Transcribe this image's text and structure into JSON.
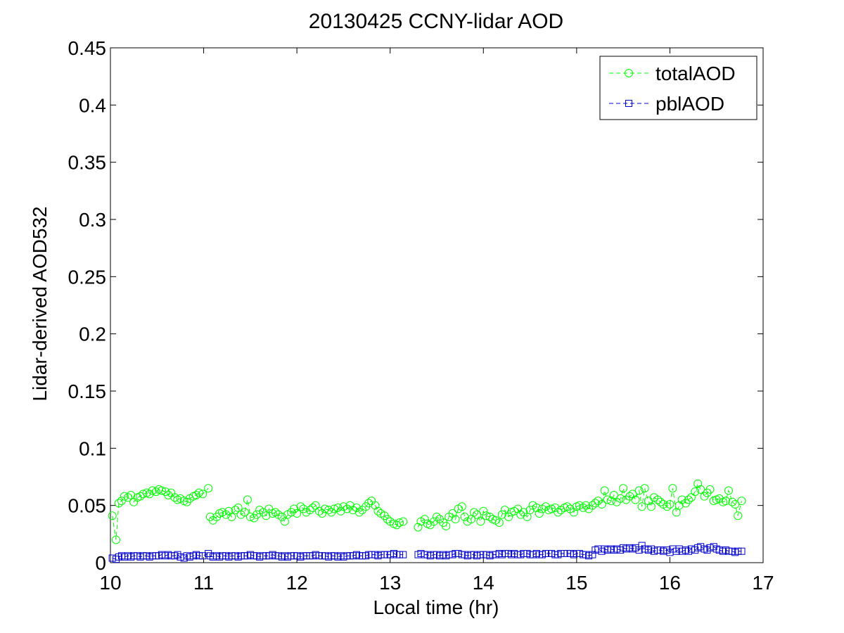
{
  "chart_data": {
    "type": "line",
    "title": "20130425 CCNY-lidar AOD",
    "xlabel": "Local time (hr)",
    "ylabel": "Lidar-derived AOD532",
    "xlim": [
      10,
      17
    ],
    "ylim": [
      0,
      0.45
    ],
    "xticks": [
      10,
      11,
      12,
      13,
      14,
      15,
      16,
      17
    ],
    "yticks": [
      0,
      0.05,
      0.1,
      0.15,
      0.2,
      0.25,
      0.3,
      0.35,
      0.4,
      0.45
    ],
    "xtick_labels": [
      "10",
      "11",
      "12",
      "13",
      "14",
      "15",
      "16",
      "17"
    ],
    "ytick_labels": [
      "0",
      "0.05",
      "0.1",
      "0.15",
      "0.2",
      "0.25",
      "0.3",
      "0.35",
      "0.4",
      "0.45"
    ],
    "grid": false,
    "legend_position": "top-right",
    "series": [
      {
        "name": "totalAOD",
        "color": "#00ff00",
        "marker": "circle",
        "line_style": "dashed",
        "segments": [
          {
            "x": [
              10.02,
              10.06,
              10.09,
              10.12,
              10.15,
              10.19,
              10.22,
              10.25,
              10.29,
              10.32,
              10.35,
              10.39,
              10.42,
              10.45,
              10.49,
              10.52,
              10.55,
              10.59,
              10.62,
              10.65,
              10.69,
              10.72,
              10.75,
              10.79,
              10.82,
              10.85,
              10.89,
              10.92,
              10.95,
              10.99,
              11.05
            ],
            "y": [
              0.041,
              0.02,
              0.052,
              0.054,
              0.058,
              0.057,
              0.059,
              0.053,
              0.057,
              0.058,
              0.06,
              0.061,
              0.06,
              0.063,
              0.062,
              0.064,
              0.063,
              0.062,
              0.059,
              0.061,
              0.057,
              0.055,
              0.056,
              0.054,
              0.053,
              0.056,
              0.058,
              0.059,
              0.061,
              0.06,
              0.065
            ]
          },
          {
            "x": [
              11.07,
              11.1,
              11.14,
              11.17,
              11.2,
              11.24,
              11.27,
              11.3,
              11.34,
              11.37,
              11.4,
              11.44,
              11.47,
              11.5,
              11.54,
              11.57,
              11.6,
              11.64,
              11.67,
              11.7,
              11.74,
              11.77,
              11.8,
              11.84,
              11.87,
              11.9,
              11.94,
              11.97,
              12.0,
              12.04,
              12.07,
              12.1,
              12.14,
              12.17,
              12.2,
              12.24,
              12.27,
              12.3,
              12.34,
              12.37,
              12.4,
              12.44,
              12.47,
              12.5,
              12.54,
              12.57,
              12.6,
              12.64,
              12.67,
              12.7,
              12.74,
              12.77,
              12.8,
              12.84,
              12.87,
              12.9,
              12.94,
              12.97,
              13.0,
              13.04,
              13.07,
              13.1,
              13.14
            ],
            "y": [
              0.04,
              0.037,
              0.04,
              0.043,
              0.044,
              0.042,
              0.045,
              0.04,
              0.046,
              0.048,
              0.042,
              0.044,
              0.055,
              0.04,
              0.039,
              0.042,
              0.046,
              0.044,
              0.041,
              0.047,
              0.043,
              0.044,
              0.042,
              0.04,
              0.036,
              0.042,
              0.044,
              0.047,
              0.043,
              0.049,
              0.047,
              0.044,
              0.046,
              0.048,
              0.05,
              0.045,
              0.043,
              0.047,
              0.046,
              0.044,
              0.047,
              0.048,
              0.045,
              0.049,
              0.047,
              0.05,
              0.046,
              0.048,
              0.044,
              0.046,
              0.049,
              0.052,
              0.054,
              0.05,
              0.045,
              0.043,
              0.041,
              0.038,
              0.036,
              0.034,
              0.033,
              0.035,
              0.036
            ]
          },
          {
            "x": [
              13.3,
              13.33,
              13.37,
              13.4,
              13.43,
              13.47,
              13.5,
              13.53,
              13.57,
              13.6,
              13.63,
              13.67,
              13.7,
              13.73,
              13.77,
              13.8,
              13.83,
              13.87,
              13.9,
              13.93,
              13.97,
              14.0,
              14.03,
              14.07,
              14.1,
              14.13,
              14.17,
              14.2,
              14.23,
              14.27,
              14.3,
              14.33,
              14.37,
              14.4,
              14.43,
              14.47,
              14.5,
              14.53,
              14.57,
              14.6,
              14.63,
              14.67,
              14.7,
              14.73,
              14.77,
              14.8,
              14.83,
              14.87,
              14.9,
              14.93,
              14.97,
              15.0,
              15.03,
              15.07,
              15.1,
              15.13,
              15.17,
              15.2,
              15.23,
              15.27,
              15.3,
              15.33,
              15.37,
              15.4,
              15.43,
              15.47,
              15.5,
              15.53,
              15.57,
              15.6,
              15.63,
              15.67,
              15.7,
              15.73,
              15.77,
              15.8,
              15.83,
              15.87,
              15.9,
              15.93,
              15.97,
              16.0,
              16.03,
              16.07,
              16.1,
              16.13,
              16.17,
              16.2,
              16.23,
              16.27,
              16.3,
              16.33,
              16.37,
              16.4,
              16.43,
              16.47,
              16.5,
              16.53,
              16.57,
              16.6,
              16.63,
              16.67,
              16.7,
              16.73,
              16.77
            ],
            "y": [
              0.031,
              0.036,
              0.038,
              0.034,
              0.033,
              0.036,
              0.04,
              0.038,
              0.035,
              0.032,
              0.04,
              0.043,
              0.038,
              0.047,
              0.049,
              0.04,
              0.036,
              0.038,
              0.044,
              0.042,
              0.036,
              0.045,
              0.041,
              0.04,
              0.038,
              0.037,
              0.035,
              0.042,
              0.046,
              0.04,
              0.044,
              0.045,
              0.047,
              0.042,
              0.044,
              0.04,
              0.046,
              0.05,
              0.048,
              0.043,
              0.047,
              0.049,
              0.046,
              0.047,
              0.048,
              0.044,
              0.046,
              0.048,
              0.049,
              0.047,
              0.044,
              0.049,
              0.05,
              0.048,
              0.05,
              0.047,
              0.05,
              0.052,
              0.054,
              0.051,
              0.063,
              0.055,
              0.054,
              0.059,
              0.053,
              0.056,
              0.065,
              0.055,
              0.058,
              0.06,
              0.055,
              0.063,
              0.049,
              0.065,
              0.054,
              0.049,
              0.057,
              0.055,
              0.053,
              0.051,
              0.049,
              0.051,
              0.065,
              0.044,
              0.05,
              0.055,
              0.052,
              0.055,
              0.057,
              0.062,
              0.069,
              0.064,
              0.058,
              0.061,
              0.064,
              0.054,
              0.055,
              0.056,
              0.053,
              0.054,
              0.063,
              0.053,
              0.051,
              0.041,
              0.054
            ]
          }
        ]
      },
      {
        "name": "pblAOD",
        "color": "#0000cc",
        "marker": "square",
        "line_style": "dashed",
        "segments": [
          {
            "x": [
              10.02,
              10.06,
              10.09,
              10.12,
              10.15,
              10.19,
              10.22,
              10.25,
              10.29,
              10.32,
              10.35,
              10.39,
              10.42,
              10.45,
              10.49,
              10.52,
              10.55,
              10.59,
              10.62,
              10.65,
              10.69,
              10.72,
              10.75,
              10.79,
              10.82,
              10.85,
              10.89,
              10.92,
              10.95,
              10.99,
              11.05
            ],
            "y": [
              0.004,
              0.003,
              0.005,
              0.006,
              0.005,
              0.006,
              0.005,
              0.006,
              0.006,
              0.005,
              0.006,
              0.006,
              0.005,
              0.006,
              0.006,
              0.006,
              0.007,
              0.006,
              0.007,
              0.006,
              0.006,
              0.007,
              0.005,
              0.004,
              0.006,
              0.005,
              0.006,
              0.007,
              0.006,
              0.006,
              0.008
            ]
          },
          {
            "x": [
              11.07,
              11.1,
              11.14,
              11.17,
              11.2,
              11.24,
              11.27,
              11.3,
              11.34,
              11.37,
              11.4,
              11.44,
              11.47,
              11.5,
              11.54,
              11.57,
              11.6,
              11.64,
              11.67,
              11.7,
              11.74,
              11.77,
              11.8,
              11.84,
              11.87,
              11.9,
              11.94,
              11.97,
              12.0,
              12.04,
              12.07,
              12.1,
              12.14,
              12.17,
              12.2,
              12.24,
              12.27,
              12.3,
              12.34,
              12.37,
              12.4,
              12.44,
              12.47,
              12.5,
              12.54,
              12.57,
              12.6,
              12.64,
              12.67,
              12.7,
              12.74,
              12.77,
              12.8,
              12.84,
              12.87,
              12.9,
              12.94,
              12.97,
              13.0,
              13.04,
              13.07,
              13.1,
              13.14
            ],
            "y": [
              0.006,
              0.005,
              0.006,
              0.005,
              0.006,
              0.006,
              0.005,
              0.006,
              0.006,
              0.005,
              0.006,
              0.006,
              0.006,
              0.007,
              0.006,
              0.006,
              0.005,
              0.006,
              0.006,
              0.006,
              0.007,
              0.006,
              0.006,
              0.005,
              0.006,
              0.005,
              0.006,
              0.006,
              0.006,
              0.005,
              0.006,
              0.006,
              0.006,
              0.006,
              0.007,
              0.006,
              0.006,
              0.006,
              0.005,
              0.006,
              0.006,
              0.005,
              0.006,
              0.005,
              0.006,
              0.006,
              0.006,
              0.007,
              0.006,
              0.006,
              0.006,
              0.007,
              0.007,
              0.007,
              0.006,
              0.007,
              0.007,
              0.007,
              0.007,
              0.008,
              0.007,
              0.007,
              0.007
            ]
          },
          {
            "x": [
              13.3,
              13.33,
              13.37,
              13.4,
              13.43,
              13.47,
              13.5,
              13.53,
              13.57,
              13.6,
              13.63,
              13.67,
              13.7,
              13.73,
              13.77,
              13.8,
              13.83,
              13.87,
              13.9,
              13.93,
              13.97,
              14.0,
              14.03,
              14.07,
              14.1,
              14.13,
              14.17,
              14.2,
              14.23,
              14.27,
              14.3,
              14.33,
              14.37,
              14.4,
              14.43,
              14.47,
              14.5,
              14.53,
              14.57,
              14.6,
              14.63,
              14.67,
              14.7,
              14.73,
              14.77,
              14.8,
              14.83,
              14.87,
              14.9,
              14.93,
              14.97,
              15.0,
              15.03,
              15.07,
              15.1,
              15.13,
              15.17,
              15.2,
              15.23,
              15.27,
              15.3,
              15.33,
              15.37,
              15.4,
              15.43,
              15.47,
              15.5,
              15.53,
              15.57,
              15.6,
              15.63,
              15.67,
              15.7,
              15.73,
              15.77,
              15.8,
              15.83,
              15.87,
              15.9,
              15.93,
              15.97,
              16.0,
              16.03,
              16.07,
              16.1,
              16.13,
              16.17,
              16.2,
              16.23,
              16.27,
              16.3,
              16.33,
              16.37,
              16.4,
              16.43,
              16.47,
              16.5,
              16.53,
              16.57,
              16.6,
              16.63,
              16.67,
              16.7,
              16.73,
              16.77
            ],
            "y": [
              0.007,
              0.008,
              0.007,
              0.007,
              0.006,
              0.007,
              0.007,
              0.006,
              0.007,
              0.006,
              0.007,
              0.007,
              0.008,
              0.008,
              0.007,
              0.007,
              0.006,
              0.007,
              0.007,
              0.006,
              0.007,
              0.007,
              0.007,
              0.006,
              0.007,
              0.007,
              0.008,
              0.007,
              0.008,
              0.008,
              0.007,
              0.008,
              0.007,
              0.007,
              0.008,
              0.008,
              0.007,
              0.007,
              0.008,
              0.007,
              0.007,
              0.008,
              0.008,
              0.008,
              0.007,
              0.007,
              0.008,
              0.008,
              0.008,
              0.008,
              0.007,
              0.008,
              0.008,
              0.007,
              0.007,
              0.006,
              0.007,
              0.011,
              0.012,
              0.01,
              0.012,
              0.011,
              0.012,
              0.011,
              0.012,
              0.011,
              0.013,
              0.012,
              0.013,
              0.012,
              0.013,
              0.011,
              0.015,
              0.012,
              0.011,
              0.012,
              0.01,
              0.011,
              0.011,
              0.01,
              0.011,
              0.009,
              0.012,
              0.01,
              0.012,
              0.01,
              0.011,
              0.01,
              0.012,
              0.011,
              0.013,
              0.014,
              0.012,
              0.011,
              0.013,
              0.014,
              0.012,
              0.011,
              0.01,
              0.011,
              0.01,
              0.01,
              0.009,
              0.01,
              0.01
            ]
          }
        ]
      }
    ]
  }
}
